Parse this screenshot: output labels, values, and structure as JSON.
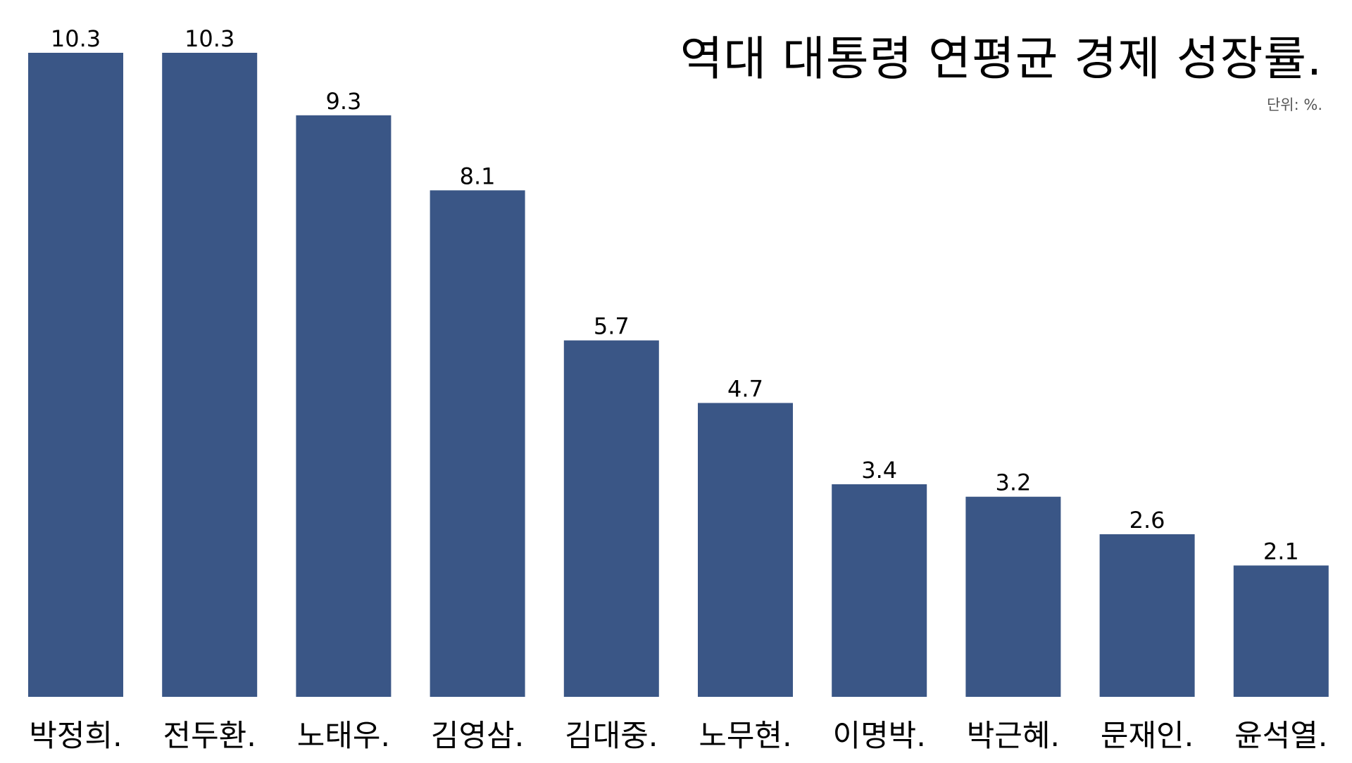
{
  "chart_data": {
    "type": "bar",
    "title": "역대 대통령 연평균 경제 성장률.",
    "unit_label": "단위: %.",
    "categories": [
      "박정희.",
      "전두환.",
      "노태우.",
      "김영삼.",
      "김대중.",
      "노무현.",
      "이명박.",
      "박근혜.",
      "문재인.",
      "윤석열."
    ],
    "values": [
      10.3,
      10.3,
      9.3,
      8.1,
      5.7,
      4.7,
      3.4,
      3.2,
      2.6,
      2.1
    ],
    "value_labels": [
      "10.3",
      "10.3",
      "9.3",
      "8.1",
      "5.7",
      "4.7",
      "3.4",
      "3.2",
      "2.6",
      "2.1"
    ],
    "ylim": [
      0,
      10.3
    ],
    "grid": false,
    "legend": "none",
    "bar_color": "#3a5686",
    "xlabel": "",
    "ylabel": ""
  }
}
